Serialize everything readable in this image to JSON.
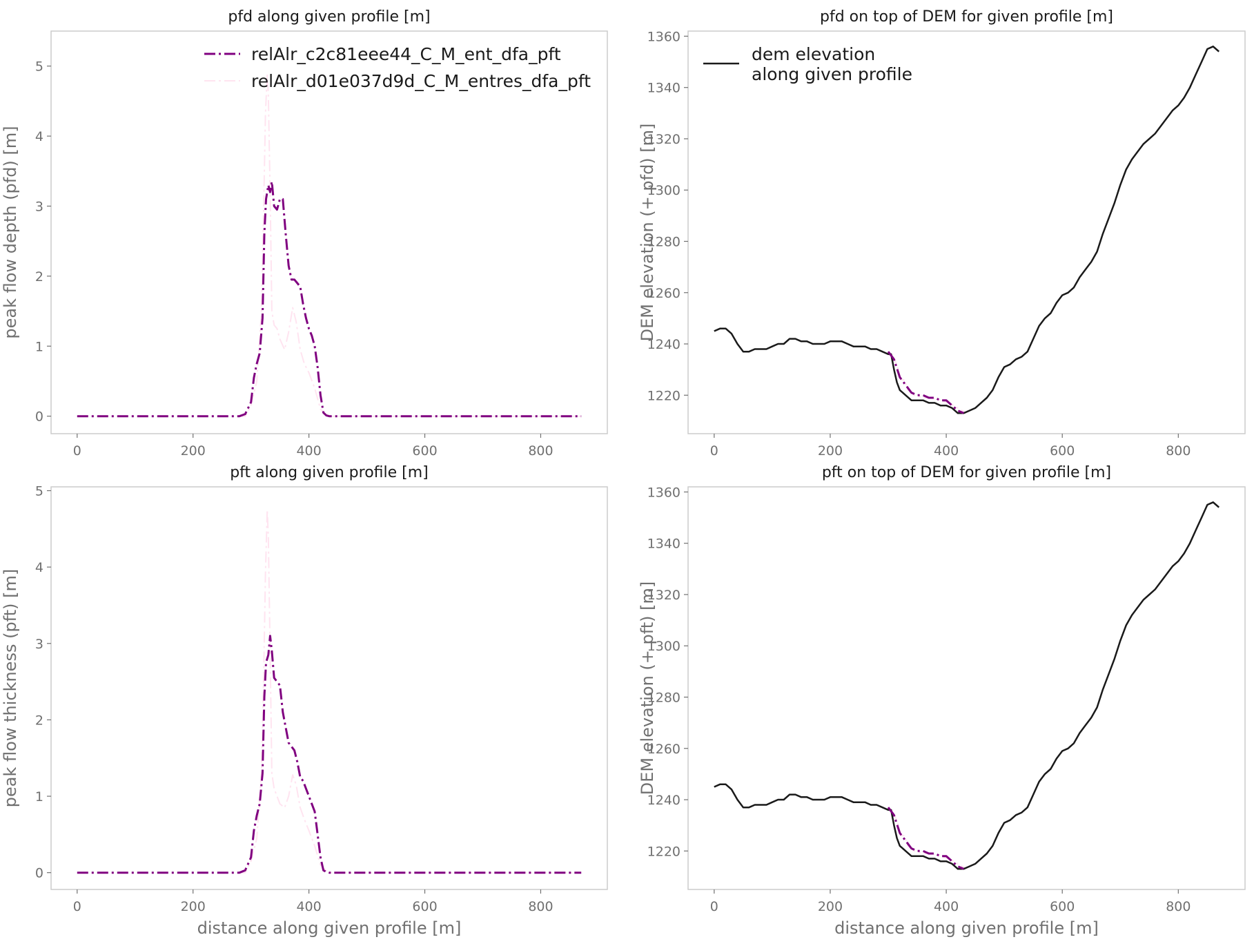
{
  "colors": {
    "run1": "#800080",
    "run2": "#ffe4f0",
    "dem": "#1a1a1a"
  },
  "chart_data": [
    {
      "type": "line",
      "title": "pfd along given profile [m]",
      "xlabel": "",
      "ylabel": "peak flow depth (pfd) [m]",
      "xlim": [
        -45,
        915
      ],
      "ylim": [
        -0.25,
        5.5
      ],
      "xticks": [
        0,
        200,
        400,
        600,
        800
      ],
      "yticks": [
        0,
        1,
        2,
        3,
        4,
        5
      ],
      "grid": false,
      "legend": "top-right",
      "series": [
        {
          "name": "relAlr_c2c81eee44_C_M_ent_dfa_pft",
          "style": "dashdot",
          "color": "run1",
          "x": [
            0,
            280,
            290,
            300,
            305,
            310,
            315,
            320,
            323,
            326,
            330,
            333,
            336,
            340,
            345,
            350,
            355,
            360,
            365,
            370,
            375,
            380,
            385,
            390,
            395,
            400,
            405,
            410,
            415,
            420,
            425,
            430,
            435,
            870
          ],
          "y": [
            0,
            0,
            0.03,
            0.2,
            0.55,
            0.75,
            0.9,
            1.4,
            2.6,
            3.1,
            3.3,
            3.2,
            3.35,
            3.0,
            2.95,
            3.1,
            3.1,
            2.6,
            2.15,
            1.95,
            1.95,
            1.9,
            1.85,
            1.6,
            1.4,
            1.25,
            1.15,
            1.0,
            0.7,
            0.3,
            0.05,
            0.01,
            0,
            0
          ]
        },
        {
          "name": "relAlr_d01e037d9d_C_M_entres_dfa_pft",
          "style": "dashdot",
          "color": "run2",
          "x": [
            0,
            290,
            300,
            310,
            318,
            322,
            325,
            328,
            330,
            333,
            336,
            340,
            345,
            350,
            358,
            365,
            372,
            378,
            385,
            392,
            400,
            410,
            420,
            430,
            440,
            870
          ],
          "y": [
            0,
            0,
            0.15,
            0.5,
            1.5,
            3.0,
            4.3,
            4.9,
            4.6,
            3.2,
            1.5,
            1.3,
            1.25,
            1.1,
            0.95,
            1.2,
            1.55,
            1.35,
            0.95,
            0.75,
            0.62,
            0.4,
            0.1,
            0.02,
            0,
            0
          ]
        }
      ]
    },
    {
      "type": "line",
      "title": "pfd on top of DEM for given profile [m]",
      "xlabel": "",
      "ylabel": "DEM elevation (+ pfd) [m]",
      "xlim": [
        -45,
        915
      ],
      "ylim": [
        1205,
        1362
      ],
      "xticks": [
        0,
        200,
        400,
        600,
        800
      ],
      "yticks": [
        1220,
        1240,
        1260,
        1280,
        1300,
        1320,
        1340,
        1360
      ],
      "grid": false,
      "legend": "top-left",
      "series": [
        {
          "name": "dem elevation\nalong given profile",
          "style": "solid",
          "color": "dem",
          "x": [
            0,
            10,
            20,
            30,
            40,
            50,
            60,
            70,
            80,
            90,
            100,
            110,
            120,
            130,
            140,
            150,
            160,
            170,
            180,
            190,
            200,
            210,
            220,
            230,
            240,
            250,
            260,
            270,
            280,
            290,
            300,
            305,
            310,
            315,
            320,
            325,
            330,
            340,
            350,
            360,
            370,
            380,
            390,
            400,
            410,
            420,
            430,
            440,
            450,
            460,
            470,
            480,
            490,
            500,
            510,
            520,
            530,
            540,
            550,
            560,
            570,
            580,
            590,
            600,
            610,
            620,
            630,
            640,
            650,
            660,
            670,
            680,
            690,
            700,
            710,
            720,
            730,
            740,
            750,
            760,
            770,
            780,
            790,
            800,
            810,
            820,
            830,
            840,
            850,
            860,
            865,
            870
          ],
          "y": [
            1245,
            1246,
            1246,
            1244,
            1240,
            1237,
            1237,
            1238,
            1238,
            1238,
            1239,
            1240,
            1240,
            1242,
            1242,
            1241,
            1241,
            1240,
            1240,
            1240,
            1241,
            1241,
            1241,
            1240,
            1239,
            1239,
            1239,
            1238,
            1238,
            1237,
            1236,
            1236,
            1230,
            1225,
            1222,
            1221,
            1220,
            1218,
            1218,
            1218,
            1217,
            1217,
            1216,
            1216,
            1215,
            1213,
            1213,
            1214,
            1215,
            1217,
            1219,
            1222,
            1227,
            1231,
            1232,
            1234,
            1235,
            1237,
            1242,
            1247,
            1250,
            1252,
            1256,
            1259,
            1260,
            1262,
            1266,
            1269,
            1272,
            1276,
            1283,
            1289,
            1295,
            1302,
            1308,
            1312,
            1315,
            1318,
            1320,
            1322,
            1325,
            1328,
            1331,
            1333,
            1336,
            1340,
            1345,
            1350,
            1355,
            1356,
            1355,
            1354
          ]
        },
        {
          "name": "",
          "style": "dashdot",
          "color": "run1",
          "x": [
            300,
            310,
            320,
            330,
            340,
            350,
            360,
            370,
            380,
            390,
            400,
            410,
            420,
            430
          ],
          "y": [
            1237,
            1234,
            1227,
            1224,
            1221,
            1220,
            1220,
            1219,
            1219,
            1218,
            1218,
            1216,
            1214,
            1213
          ]
        },
        {
          "name": "",
          "style": "dashdot",
          "color": "run2",
          "x": [
            305,
            315,
            322,
            328,
            334,
            345,
            360,
            375,
            390,
            405,
            420,
            435
          ],
          "y": [
            1236,
            1232,
            1226,
            1226,
            1222,
            1220,
            1219,
            1219,
            1218,
            1217,
            1215,
            1213
          ]
        }
      ]
    },
    {
      "type": "line",
      "title": "pft along given profile [m]",
      "xlabel": "distance along given profile [m]",
      "ylabel": "peak flow thickness (pft) [m]",
      "xlim": [
        -45,
        915
      ],
      "ylim": [
        -0.22,
        5.05
      ],
      "xticks": [
        0,
        200,
        400,
        600,
        800
      ],
      "yticks": [
        0,
        1,
        2,
        3,
        4,
        5
      ],
      "grid": false,
      "series": [
        {
          "name": "relAlr_c2c81eee44_C_M_ent_dfa_pft",
          "style": "dashdot",
          "color": "run1",
          "x": [
            0,
            280,
            290,
            300,
            305,
            310,
            315,
            320,
            323,
            326,
            330,
            333,
            336,
            340,
            345,
            350,
            355,
            360,
            365,
            370,
            375,
            380,
            385,
            390,
            395,
            400,
            405,
            410,
            415,
            420,
            425,
            430,
            435,
            870
          ],
          "y": [
            0,
            0,
            0.03,
            0.2,
            0.55,
            0.75,
            0.9,
            1.3,
            2.3,
            2.75,
            2.85,
            3.1,
            2.9,
            2.55,
            2.5,
            2.45,
            2.1,
            1.9,
            1.7,
            1.65,
            1.6,
            1.45,
            1.25,
            1.2,
            1.1,
            1.0,
            0.9,
            0.8,
            0.5,
            0.2,
            0.03,
            0.01,
            0,
            0
          ]
        },
        {
          "name": "relAlr_d01e037d9d_C_M_entres_dfa_pft",
          "style": "dashdot",
          "color": "run2",
          "x": [
            0,
            290,
            300,
            310,
            318,
            322,
            325,
            328,
            330,
            333,
            336,
            340,
            345,
            350,
            358,
            365,
            372,
            378,
            385,
            392,
            400,
            410,
            420,
            430,
            440,
            870
          ],
          "y": [
            0,
            0,
            0.15,
            0.45,
            1.3,
            2.6,
            3.9,
            4.75,
            4.4,
            2.9,
            1.3,
            1.1,
            1.0,
            0.9,
            0.85,
            1.0,
            1.28,
            1.15,
            0.85,
            0.7,
            0.55,
            0.35,
            0.1,
            0.02,
            0,
            0
          ]
        }
      ]
    },
    {
      "type": "line",
      "title": "pft on top of DEM for given profile [m]",
      "xlabel": "distance along given profile [m]",
      "ylabel": "DEM elevation (+ pft) [m]",
      "xlim": [
        -45,
        915
      ],
      "ylim": [
        1205,
        1362
      ],
      "xticks": [
        0,
        200,
        400,
        600,
        800
      ],
      "yticks": [
        1220,
        1240,
        1260,
        1280,
        1300,
        1320,
        1340,
        1360
      ],
      "grid": false,
      "series": [
        {
          "name": "dem elevation\nalong given profile",
          "style": "solid",
          "color": "dem",
          "x": [
            0,
            10,
            20,
            30,
            40,
            50,
            60,
            70,
            80,
            90,
            100,
            110,
            120,
            130,
            140,
            150,
            160,
            170,
            180,
            190,
            200,
            210,
            220,
            230,
            240,
            250,
            260,
            270,
            280,
            290,
            300,
            305,
            310,
            315,
            320,
            325,
            330,
            340,
            350,
            360,
            370,
            380,
            390,
            400,
            410,
            420,
            430,
            440,
            450,
            460,
            470,
            480,
            490,
            500,
            510,
            520,
            530,
            540,
            550,
            560,
            570,
            580,
            590,
            600,
            610,
            620,
            630,
            640,
            650,
            660,
            670,
            680,
            690,
            700,
            710,
            720,
            730,
            740,
            750,
            760,
            770,
            780,
            790,
            800,
            810,
            820,
            830,
            840,
            850,
            860,
            865,
            870
          ],
          "y": [
            1245,
            1246,
            1246,
            1244,
            1240,
            1237,
            1237,
            1238,
            1238,
            1238,
            1239,
            1240,
            1240,
            1242,
            1242,
            1241,
            1241,
            1240,
            1240,
            1240,
            1241,
            1241,
            1241,
            1240,
            1239,
            1239,
            1239,
            1238,
            1238,
            1237,
            1236,
            1236,
            1230,
            1225,
            1222,
            1221,
            1220,
            1218,
            1218,
            1218,
            1217,
            1217,
            1216,
            1216,
            1215,
            1213,
            1213,
            1214,
            1215,
            1217,
            1219,
            1222,
            1227,
            1231,
            1232,
            1234,
            1235,
            1237,
            1242,
            1247,
            1250,
            1252,
            1256,
            1259,
            1260,
            1262,
            1266,
            1269,
            1272,
            1276,
            1283,
            1289,
            1295,
            1302,
            1308,
            1312,
            1315,
            1318,
            1320,
            1322,
            1325,
            1328,
            1331,
            1333,
            1336,
            1340,
            1345,
            1350,
            1355,
            1356,
            1355,
            1354
          ]
        },
        {
          "name": "",
          "style": "dashdot",
          "color": "run1",
          "x": [
            300,
            310,
            320,
            330,
            340,
            350,
            360,
            370,
            380,
            390,
            400,
            410,
            420,
            430
          ],
          "y": [
            1237,
            1234,
            1227,
            1224,
            1221,
            1220,
            1220,
            1219,
            1219,
            1218,
            1218,
            1216,
            1214,
            1213
          ]
        },
        {
          "name": "",
          "style": "dashdot",
          "color": "run2",
          "x": [
            305,
            315,
            322,
            328,
            334,
            345,
            360,
            375,
            390,
            405,
            420,
            435
          ],
          "y": [
            1236,
            1232,
            1226,
            1226,
            1222,
            1220,
            1219,
            1219,
            1218,
            1217,
            1215,
            1213
          ]
        }
      ]
    }
  ]
}
